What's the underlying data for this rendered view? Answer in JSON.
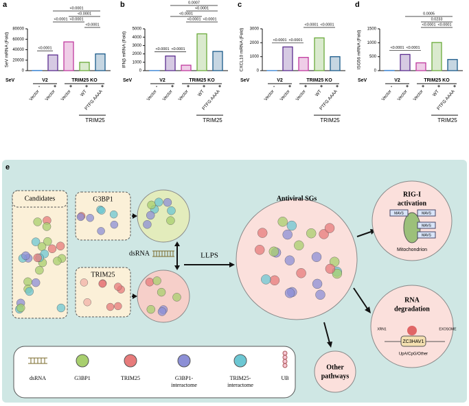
{
  "chart_data": [
    {
      "type": "bar",
      "panel": "a",
      "ylabel": "SeV mRNA (Fold)",
      "categories": [
        "Vector",
        "Vector",
        "Vector",
        "WT",
        "PTFG AAAA"
      ],
      "treatment_label": "SeV",
      "treatment_signs": [
        "-",
        "+",
        "+",
        "+",
        "+"
      ],
      "groups": [
        "V2",
        "TRIM25 KO"
      ],
      "subgroup": "TRIM25",
      "values": [
        500,
        30000,
        55000,
        16000,
        32000
      ],
      "colors": [
        "#4a8fd8",
        "#5b2d8e",
        "#c0399e",
        "#6aaa3a",
        "#1a5a8a"
      ],
      "ylim": [
        0,
        80000
      ],
      "yticks": [
        0,
        20000,
        40000,
        60000,
        80000
      ],
      "annotations": [
        "<0.0001",
        "<0.0001",
        "<0.0001",
        "<0.0001",
        "<0.0001",
        "<0.0001"
      ]
    },
    {
      "type": "bar",
      "panel": "b",
      "ylabel": "IFNβ mRNA (Fold)",
      "categories": [
        "Vector",
        "Vector",
        "Vector",
        "WT",
        "PTFG AAAA"
      ],
      "treatment_label": "SeV",
      "treatment_signs": [
        "-",
        "+",
        "+",
        "+",
        "+"
      ],
      "groups": [
        "V2",
        "TRIM25 KO"
      ],
      "subgroup": "TRIM25",
      "values": [
        20,
        1750,
        650,
        4400,
        2300
      ],
      "colors": [
        "#4a8fd8",
        "#5b2d8e",
        "#c0399e",
        "#6aaa3a",
        "#1a5a8a"
      ],
      "ylim": [
        0,
        5000
      ],
      "yticks": [
        0,
        1000,
        2000,
        3000,
        4000,
        5000
      ],
      "annotations": [
        "<0.0001",
        "<0.0001",
        "<0.0001",
        "<0.0001",
        "<0.0001",
        "<0.0001",
        "0.0007"
      ]
    },
    {
      "type": "bar",
      "panel": "c",
      "ylabel": "CXCL10 mRNA (Fold)",
      "categories": [
        "Vector",
        "Vector",
        "Vector",
        "WT",
        "PTFG AAAA"
      ],
      "treatment_label": "SeV",
      "treatment_signs": [
        "-",
        "+",
        "+",
        "+",
        "+"
      ],
      "groups": [
        "V2",
        "TRIM25 KO"
      ],
      "subgroup": "TRIM25",
      "values": [
        10,
        1700,
        950,
        2350,
        1000
      ],
      "colors": [
        "#4a8fd8",
        "#5b2d8e",
        "#c0399e",
        "#6aaa3a",
        "#1a5a8a"
      ],
      "ylim": [
        0,
        3000
      ],
      "yticks": [
        0,
        1000,
        2000,
        3000
      ],
      "annotations": [
        "<0.0001",
        "<0.0001",
        "<0.0001",
        "<0.0001"
      ]
    },
    {
      "type": "bar",
      "panel": "d",
      "ylabel": "ISG56 mRNA (Fold)",
      "categories": [
        "Vector",
        "Vector",
        "Vector",
        "WT",
        "PTFG AAAA"
      ],
      "treatment_label": "SeV",
      "treatment_signs": [
        "-",
        "+",
        "+",
        "+",
        "+"
      ],
      "groups": [
        "V2",
        "TRIM25 KO"
      ],
      "subgroup": "TRIM25",
      "values": [
        10,
        580,
        280,
        1010,
        400
      ],
      "colors": [
        "#4a8fd8",
        "#5b2d8e",
        "#c0399e",
        "#6aaa3a",
        "#1a5a8a"
      ],
      "ylim": [
        0,
        1500
      ],
      "yticks": [
        0,
        500,
        1000,
        1500
      ],
      "annotations": [
        "<0.0001",
        "<0.0001",
        "<0.0001",
        "<0.0001",
        "0.0233",
        "0.0005"
      ]
    }
  ],
  "diagram": {
    "panel": "e",
    "candidates": "Candidates",
    "g3bp1": "G3BP1",
    "trim25": "TRIM25",
    "dsrna": "dsRNA",
    "llps": "LLPS",
    "antiviral": "Antiviral SGs",
    "rig1": [
      "RIG-I",
      "activation"
    ],
    "mavs": "MAVS",
    "mito": "Mitochondrion",
    "rna_deg": [
      "RNA",
      "degradation"
    ],
    "xrn1": "XRN1",
    "zc3hav1": "ZC3HAV1",
    "exosome": "EXOSOME",
    "upa": "UpA/CpG/Other",
    "other": [
      "Other",
      "pathways"
    ],
    "legend": [
      "dsRNA",
      "G3BP1",
      "TRIM25",
      [
        "G3BP1-",
        "interactome"
      ],
      [
        "TRIM25-",
        "interactome"
      ],
      "UB"
    ]
  }
}
